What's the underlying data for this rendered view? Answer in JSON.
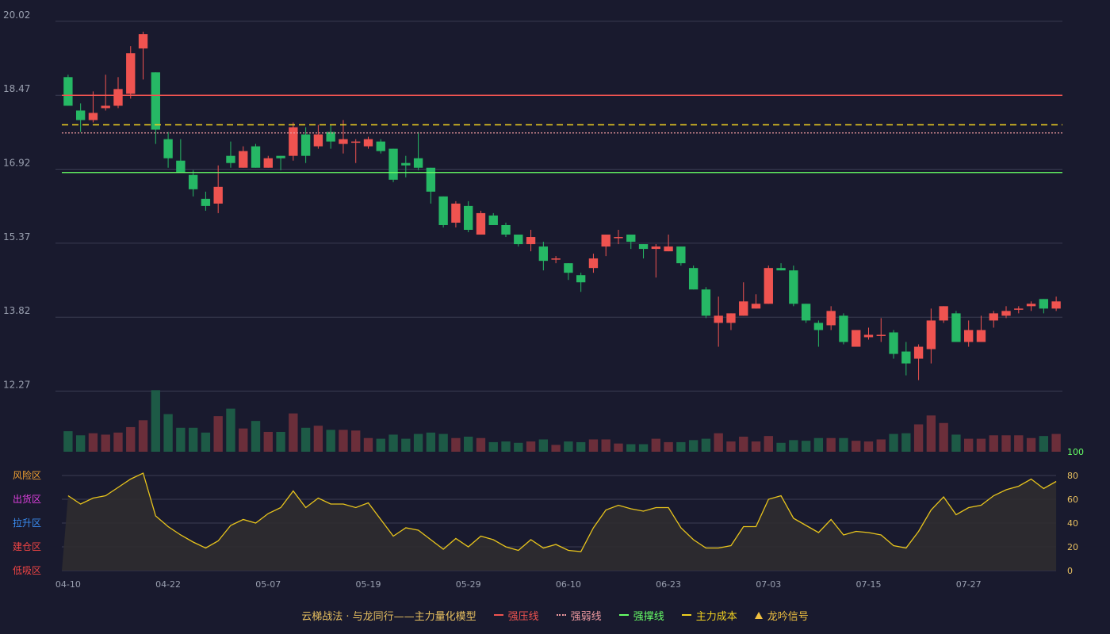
{
  "colors": {
    "background": "#191a2e",
    "grid": "#3a3c52",
    "axis_text": "#9aa0b0",
    "up": "#ef5350",
    "down": "#26b865",
    "up_volume": "#6b2e3a",
    "down_volume": "#1d5a46",
    "pressure_line": "#ef5350",
    "weak_line": "#ef9aa0",
    "support_line": "#66ff66",
    "cost_line": "#f0d020",
    "osc_line": "#e8c41c",
    "osc_fill": "#2f2c30"
  },
  "legend": {
    "title": "云梯战法 · 与龙同行——主力量化模型",
    "items": [
      {
        "label": "强压线",
        "color": "#ef5350",
        "style": "solid"
      },
      {
        "label": "强弱线",
        "color": "#ef9aa0",
        "style": "dotted"
      },
      {
        "label": "强撑线",
        "color": "#66ff66",
        "style": "solid"
      },
      {
        "label": "主力成本",
        "color": "#f0d020",
        "style": "dashed"
      },
      {
        "label": "龙吟信号",
        "color": "#f0c040",
        "style": "triangle"
      }
    ]
  },
  "chart_data": [
    {
      "type": "candlestick",
      "title": "",
      "ylim": [
        11.0,
        20.3
      ],
      "y_ticks": [
        "20.02",
        "18.47",
        "16.92",
        "15.37",
        "13.82",
        "12.27"
      ],
      "x_ticks": [
        {
          "label": "04-10",
          "index": 0
        },
        {
          "label": "04-22",
          "index": 8
        },
        {
          "label": "05-07",
          "index": 16
        },
        {
          "label": "05-19",
          "index": 24
        },
        {
          "label": "05-29",
          "index": 32
        },
        {
          "label": "06-10",
          "index": 40
        },
        {
          "label": "06-23",
          "index": 48
        },
        {
          "label": "07-03",
          "index": 56
        },
        {
          "label": "07-15",
          "index": 64
        },
        {
          "label": "07-27",
          "index": 72
        }
      ],
      "candles": [
        {
          "o": 18.85,
          "h": 18.9,
          "l": 18.25,
          "c": 18.25
        },
        {
          "o": 18.15,
          "h": 18.3,
          "l": 17.7,
          "c": 17.95
        },
        {
          "o": 17.95,
          "h": 18.55,
          "l": 17.9,
          "c": 18.1
        },
        {
          "o": 18.2,
          "h": 18.9,
          "l": 18.15,
          "c": 18.25
        },
        {
          "o": 18.25,
          "h": 18.85,
          "l": 18.2,
          "c": 18.6
        },
        {
          "o": 18.5,
          "h": 19.5,
          "l": 18.4,
          "c": 19.35
        },
        {
          "o": 19.45,
          "h": 19.8,
          "l": 18.8,
          "c": 19.75
        },
        {
          "o": 18.95,
          "h": 18.95,
          "l": 17.45,
          "c": 17.75
        },
        {
          "o": 17.55,
          "h": 17.7,
          "l": 16.95,
          "c": 17.15
        },
        {
          "o": 17.1,
          "h": 17.55,
          "l": 16.85,
          "c": 16.85
        },
        {
          "o": 16.8,
          "h": 16.9,
          "l": 16.35,
          "c": 16.5
        },
        {
          "o": 16.3,
          "h": 16.45,
          "l": 16.05,
          "c": 16.15
        },
        {
          "o": 16.2,
          "h": 17.0,
          "l": 16.0,
          "c": 16.55
        },
        {
          "o": 17.2,
          "h": 17.5,
          "l": 16.95,
          "c": 17.05
        },
        {
          "o": 16.95,
          "h": 17.4,
          "l": 16.95,
          "c": 17.3
        },
        {
          "o": 17.4,
          "h": 17.45,
          "l": 16.95,
          "c": 16.95
        },
        {
          "o": 16.95,
          "h": 17.2,
          "l": 16.95,
          "c": 17.15
        },
        {
          "o": 17.2,
          "h": 17.2,
          "l": 16.9,
          "c": 17.15
        },
        {
          "o": 17.2,
          "h": 17.9,
          "l": 17.1,
          "c": 17.8
        },
        {
          "o": 17.65,
          "h": 17.8,
          "l": 17.05,
          "c": 17.2
        },
        {
          "o": 17.4,
          "h": 17.85,
          "l": 17.35,
          "c": 17.65
        },
        {
          "o": 17.7,
          "h": 17.85,
          "l": 17.35,
          "c": 17.5
        },
        {
          "o": 17.45,
          "h": 17.95,
          "l": 17.25,
          "c": 17.55
        },
        {
          "o": 17.5,
          "h": 17.55,
          "l": 17.05,
          "c": 17.5
        },
        {
          "o": 17.4,
          "h": 17.6,
          "l": 17.35,
          "c": 17.55
        },
        {
          "o": 17.5,
          "h": 17.55,
          "l": 17.25,
          "c": 17.3
        },
        {
          "o": 17.35,
          "h": 17.35,
          "l": 16.65,
          "c": 16.7
        },
        {
          "o": 17.05,
          "h": 17.2,
          "l": 16.75,
          "c": 17.0
        },
        {
          "o": 17.15,
          "h": 17.7,
          "l": 16.9,
          "c": 16.95
        },
        {
          "o": 16.95,
          "h": 16.95,
          "l": 16.2,
          "c": 16.45
        },
        {
          "o": 16.35,
          "h": 16.35,
          "l": 15.7,
          "c": 15.75
        },
        {
          "o": 15.8,
          "h": 16.25,
          "l": 15.7,
          "c": 16.2
        },
        {
          "o": 16.15,
          "h": 16.25,
          "l": 15.6,
          "c": 15.65
        },
        {
          "o": 15.55,
          "h": 16.05,
          "l": 15.55,
          "c": 16.0
        },
        {
          "o": 15.95,
          "h": 16.0,
          "l": 15.75,
          "c": 15.75
        },
        {
          "o": 15.75,
          "h": 15.8,
          "l": 15.5,
          "c": 15.55
        },
        {
          "o": 15.55,
          "h": 15.55,
          "l": 15.3,
          "c": 15.35
        },
        {
          "o": 15.35,
          "h": 15.65,
          "l": 15.2,
          "c": 15.5
        },
        {
          "o": 15.3,
          "h": 15.4,
          "l": 14.8,
          "c": 15.0
        },
        {
          "o": 15.05,
          "h": 15.1,
          "l": 14.95,
          "c": 15.05
        },
        {
          "o": 14.95,
          "h": 14.95,
          "l": 14.6,
          "c": 14.75
        },
        {
          "o": 14.7,
          "h": 14.75,
          "l": 14.35,
          "c": 14.55
        },
        {
          "o": 14.85,
          "h": 15.15,
          "l": 14.75,
          "c": 15.05
        },
        {
          "o": 15.3,
          "h": 15.55,
          "l": 15.1,
          "c": 15.55
        },
        {
          "o": 15.5,
          "h": 15.65,
          "l": 15.35,
          "c": 15.5
        },
        {
          "o": 15.55,
          "h": 15.55,
          "l": 15.25,
          "c": 15.4
        },
        {
          "o": 15.35,
          "h": 15.35,
          "l": 15.05,
          "c": 15.25
        },
        {
          "o": 15.25,
          "h": 15.35,
          "l": 14.65,
          "c": 15.3
        },
        {
          "o": 15.2,
          "h": 15.55,
          "l": 15.2,
          "c": 15.3
        },
        {
          "o": 15.3,
          "h": 15.3,
          "l": 14.9,
          "c": 14.95
        },
        {
          "o": 14.85,
          "h": 14.9,
          "l": 14.4,
          "c": 14.4
        },
        {
          "o": 14.4,
          "h": 14.45,
          "l": 13.8,
          "c": 13.85
        },
        {
          "o": 13.7,
          "h": 14.25,
          "l": 13.2,
          "c": 13.85
        },
        {
          "o": 13.7,
          "h": 13.9,
          "l": 13.55,
          "c": 13.9
        },
        {
          "o": 13.85,
          "h": 14.55,
          "l": 13.85,
          "c": 14.15
        },
        {
          "o": 14.0,
          "h": 14.3,
          "l": 14.0,
          "c": 14.1
        },
        {
          "o": 14.1,
          "h": 14.9,
          "l": 14.1,
          "c": 14.85
        },
        {
          "o": 14.85,
          "h": 14.95,
          "l": 14.8,
          "c": 14.8
        },
        {
          "o": 14.8,
          "h": 14.9,
          "l": 14.05,
          "c": 14.1
        },
        {
          "o": 14.1,
          "h": 14.1,
          "l": 13.7,
          "c": 13.75
        },
        {
          "o": 13.7,
          "h": 13.75,
          "l": 13.2,
          "c": 13.55
        },
        {
          "o": 13.65,
          "h": 14.05,
          "l": 13.55,
          "c": 13.95
        },
        {
          "o": 13.85,
          "h": 13.9,
          "l": 13.25,
          "c": 13.3
        },
        {
          "o": 13.2,
          "h": 13.55,
          "l": 13.2,
          "c": 13.55
        },
        {
          "o": 13.4,
          "h": 13.6,
          "l": 13.35,
          "c": 13.45
        },
        {
          "o": 13.45,
          "h": 13.8,
          "l": 13.3,
          "c": 13.45
        },
        {
          "o": 13.5,
          "h": 13.55,
          "l": 12.95,
          "c": 13.05
        },
        {
          "o": 13.1,
          "h": 13.3,
          "l": 12.6,
          "c": 12.85
        },
        {
          "o": 12.95,
          "h": 13.25,
          "l": 12.5,
          "c": 13.2
        },
        {
          "o": 13.15,
          "h": 14.0,
          "l": 12.85,
          "c": 13.75
        },
        {
          "o": 13.75,
          "h": 14.05,
          "l": 13.7,
          "c": 14.05
        },
        {
          "o": 13.9,
          "h": 13.95,
          "l": 13.3,
          "c": 13.3
        },
        {
          "o": 13.3,
          "h": 13.75,
          "l": 13.2,
          "c": 13.55
        },
        {
          "o": 13.3,
          "h": 13.85,
          "l": 13.3,
          "c": 13.55
        },
        {
          "o": 13.75,
          "h": 13.95,
          "l": 13.6,
          "c": 13.9
        },
        {
          "o": 13.85,
          "h": 14.05,
          "l": 13.8,
          "c": 13.95
        },
        {
          "o": 14.0,
          "h": 14.05,
          "l": 13.9,
          "c": 14.0
        },
        {
          "o": 14.05,
          "h": 14.15,
          "l": 13.95,
          "c": 14.1
        },
        {
          "o": 14.2,
          "h": 14.2,
          "l": 13.9,
          "c": 14.0
        },
        {
          "o": 14.0,
          "h": 14.25,
          "l": 13.95,
          "c": 14.15
        }
      ],
      "lines": [
        {
          "name": "强压线",
          "value": 18.47
        },
        {
          "name": "主力成本",
          "value": 17.85
        },
        {
          "name": "强弱线",
          "value": 17.68
        },
        {
          "name": "强撑线",
          "value": 16.85
        }
      ]
    },
    {
      "type": "bar",
      "title": "",
      "series_name": "volume",
      "values": [
        30,
        24,
        27,
        25,
        28,
        36,
        46,
        90,
        55,
        35,
        35,
        28,
        52,
        63,
        34,
        45,
        29,
        29,
        56,
        35,
        38,
        32,
        32,
        31,
        20,
        19,
        25,
        19,
        26,
        28,
        26,
        20,
        22,
        20,
        14,
        15,
        13,
        15,
        18,
        10,
        15,
        14,
        18,
        18,
        12,
        11,
        11,
        19,
        14,
        14,
        17,
        19,
        27,
        15,
        22,
        15,
        23,
        13,
        17,
        16,
        20,
        20,
        20,
        16,
        15,
        18,
        26,
        27,
        40,
        53,
        42,
        25,
        19,
        19,
        24,
        24,
        24,
        20,
        23,
        26
      ],
      "ylim": [
        0,
        95
      ]
    },
    {
      "type": "line",
      "title": "",
      "ylim": [
        0,
        100
      ],
      "y_ticks": [
        "100",
        "80",
        "60",
        "40",
        "20",
        "0"
      ],
      "zone_labels": [
        {
          "label": "风险区",
          "color": "#f0a030"
        },
        {
          "label": "出货区",
          "color": "#e040e0"
        },
        {
          "label": "拉升区",
          "color": "#3a8cf0"
        },
        {
          "label": "建仓区",
          "color": "#ef4444"
        },
        {
          "label": "低吸区",
          "color": "#ef4444"
        }
      ],
      "values": [
        63,
        56,
        61,
        63,
        70,
        77,
        82,
        46,
        37,
        30,
        24,
        19,
        25,
        38,
        43,
        40,
        48,
        53,
        67,
        53,
        61,
        56,
        56,
        53,
        57,
        43,
        29,
        36,
        34,
        26,
        18,
        27,
        20,
        29,
        26,
        20,
        17,
        26,
        19,
        22,
        17,
        16,
        36,
        51,
        55,
        52,
        50,
        53,
        53,
        36,
        26,
        19,
        19,
        21,
        37,
        37,
        60,
        63,
        44,
        38,
        32,
        43,
        30,
        33,
        32,
        30,
        21,
        19,
        33,
        51,
        62,
        47,
        53,
        55,
        63,
        68,
        71,
        77,
        69,
        75
      ]
    }
  ]
}
